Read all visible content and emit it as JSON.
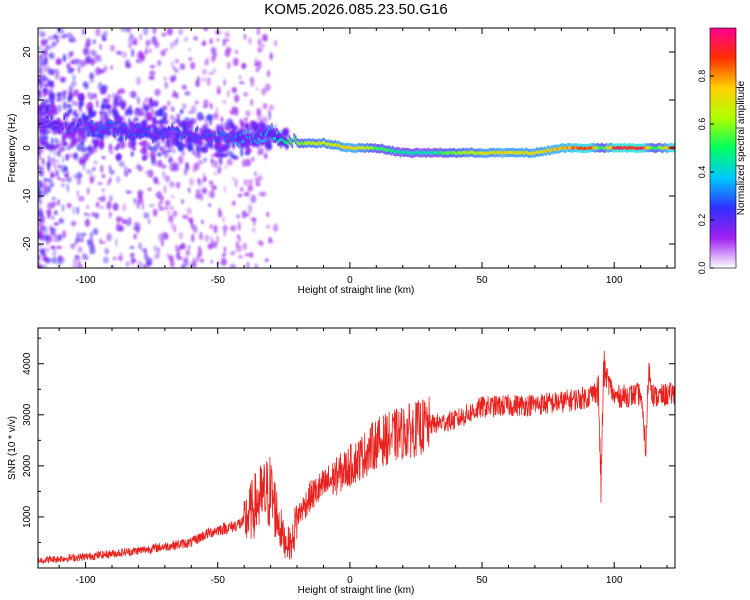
{
  "title": "KOM5.2026.085.23.50.G16",
  "chart_data": [
    {
      "type": "heatmap",
      "panel": "spectrogram",
      "xlabel": "Height of straight line (km)",
      "ylabel": "Frequency (Hz)",
      "xlim": [
        -118,
        123
      ],
      "ylim": [
        -25,
        25
      ],
      "xticks": [
        -100,
        -50,
        0,
        50,
        100
      ],
      "xtick_labels": [
        "-100",
        "-50",
        "0",
        "50",
        "100"
      ],
      "yticks": [
        -20,
        -10,
        0,
        10,
        20
      ],
      "ytick_labels": [
        "-20",
        "-10",
        "0",
        "10",
        "20"
      ],
      "colorbar": {
        "label": "Normalized spectral amplitude",
        "range": [
          0,
          1
        ],
        "ticks": [
          0.0,
          0.2,
          0.4,
          0.6,
          0.8
        ],
        "tick_labels": [
          "0.0",
          "0.2",
          "0.4",
          "0.6",
          "0.8"
        ],
        "colors": [
          "#ffffff",
          "#a020f0",
          "#3030ff",
          "#00c8ff",
          "#00ff60",
          "#b0ff00",
          "#ffd000",
          "#ff3000",
          "#ff0090"
        ]
      },
      "ridge": {
        "description_points_x": [
          -118,
          -110,
          -100,
          -90,
          -80,
          -70,
          -60,
          -50,
          -40,
          -30,
          -25,
          -20,
          -10,
          0,
          10,
          20,
          30,
          40,
          50,
          60,
          70,
          80,
          90,
          95,
          100,
          110,
          115,
          123
        ],
        "frequency_hz": [
          5,
          5,
          4,
          4,
          3,
          3,
          3,
          2,
          2,
          3,
          2,
          1,
          1,
          0,
          0,
          -1,
          -1,
          -1,
          -1,
          -1,
          -1,
          0,
          0,
          0,
          0,
          0,
          0,
          0
        ],
        "amplitude": [
          0.2,
          0.25,
          0.3,
          0.3,
          0.3,
          0.28,
          0.28,
          0.3,
          0.35,
          0.4,
          0.5,
          0.6,
          0.7,
          0.75,
          0.55,
          0.45,
          0.45,
          0.6,
          0.7,
          0.75,
          0.7,
          0.8,
          0.9,
          0.5,
          0.95,
          0.95,
          0.5,
          0.95
        ]
      }
    },
    {
      "type": "line",
      "panel": "snr",
      "xlabel": "Height of straight line (km)",
      "ylabel": "SNR (10 * v/v)",
      "xlim": [
        -118,
        123
      ],
      "ylim": [
        0,
        4700
      ],
      "xticks": [
        -100,
        -50,
        0,
        50,
        100
      ],
      "xtick_labels": [
        "-100",
        "-50",
        "0",
        "50",
        "100"
      ],
      "yticks": [
        1000,
        2000,
        3000,
        4000
      ],
      "ytick_labels": [
        "1000",
        "2000",
        "3000",
        "4000"
      ],
      "series": [
        {
          "name": "SNR",
          "color": "#e8231f",
          "x": [
            -118,
            -110,
            -100,
            -90,
            -80,
            -70,
            -60,
            -55,
            -50,
            -45,
            -40,
            -35,
            -30,
            -25,
            -22,
            -20,
            -15,
            -10,
            -5,
            0,
            5,
            10,
            20,
            30,
            40,
            50,
            60,
            70,
            80,
            85,
            90,
            94,
            95,
            96,
            100,
            110,
            112,
            113,
            115,
            123
          ],
          "y": [
            150,
            180,
            220,
            280,
            340,
            420,
            500,
            650,
            750,
            800,
            900,
            1300,
            1500,
            550,
            450,
            1000,
            1400,
            1600,
            1800,
            2000,
            2200,
            2450,
            2650,
            2800,
            2900,
            3150,
            3180,
            3200,
            3250,
            3300,
            3350,
            3500,
            1600,
            3900,
            3350,
            3400,
            2300,
            3900,
            3350,
            3420
          ]
        }
      ]
    }
  ]
}
